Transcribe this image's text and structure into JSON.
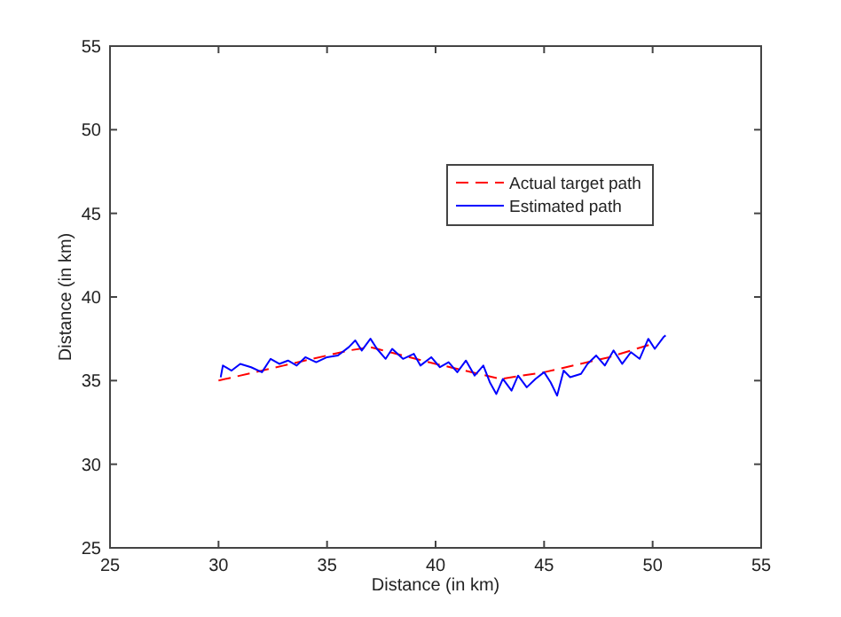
{
  "chart_data": {
    "type": "line",
    "xlabel": "Distance (in km)",
    "ylabel": "Distance (in km)",
    "xlim": [
      25,
      55
    ],
    "ylim": [
      25,
      55
    ],
    "xticks": [
      25,
      30,
      35,
      40,
      45,
      50,
      55
    ],
    "yticks": [
      25,
      30,
      35,
      40,
      45,
      50,
      55
    ],
    "grid": false,
    "legend": "top right",
    "series": [
      {
        "name": "Actual target path",
        "color": "#ff0000",
        "line_style": "dashed",
        "x": [
          30,
          33,
          36,
          37,
          40,
          43,
          45,
          48,
          50
        ],
        "values": [
          35,
          35.9,
          36.8,
          37,
          36,
          35.1,
          35.5,
          36.4,
          37.2
        ]
      },
      {
        "name": "Estimated path",
        "color": "#0000ff",
        "line_style": "solid",
        "x": [
          30.1,
          30.2,
          30.6,
          31,
          31.5,
          32,
          32.4,
          32.8,
          33.2,
          33.6,
          34,
          34.5,
          35,
          35.5,
          36,
          36.3,
          36.6,
          37,
          37.3,
          37.7,
          38,
          38.5,
          39,
          39.3,
          39.8,
          40.2,
          40.6,
          41,
          41.4,
          41.8,
          42.2,
          42.5,
          42.8,
          43.1,
          43.5,
          43.8,
          44.2,
          44.6,
          45,
          45.3,
          45.6,
          45.9,
          46.2,
          46.7,
          47,
          47.4,
          47.8,
          48.2,
          48.6,
          49,
          49.4,
          49.8,
          50.1,
          50.5,
          50.6
        ],
        "values": [
          35.2,
          35.9,
          35.6,
          36,
          35.8,
          35.5,
          36.3,
          36,
          36.2,
          35.9,
          36.4,
          36.1,
          36.4,
          36.5,
          37,
          37.4,
          36.8,
          37.5,
          36.9,
          36.3,
          36.9,
          36.3,
          36.6,
          35.9,
          36.4,
          35.8,
          36.1,
          35.5,
          36.2,
          35.3,
          35.9,
          34.9,
          34.2,
          35.1,
          34.4,
          35.3,
          34.6,
          35.1,
          35.5,
          34.9,
          34.1,
          35.6,
          35.2,
          35.4,
          36,
          36.5,
          35.9,
          36.8,
          36,
          36.7,
          36.3,
          37.5,
          36.9,
          37.6,
          37.7
        ]
      }
    ]
  }
}
